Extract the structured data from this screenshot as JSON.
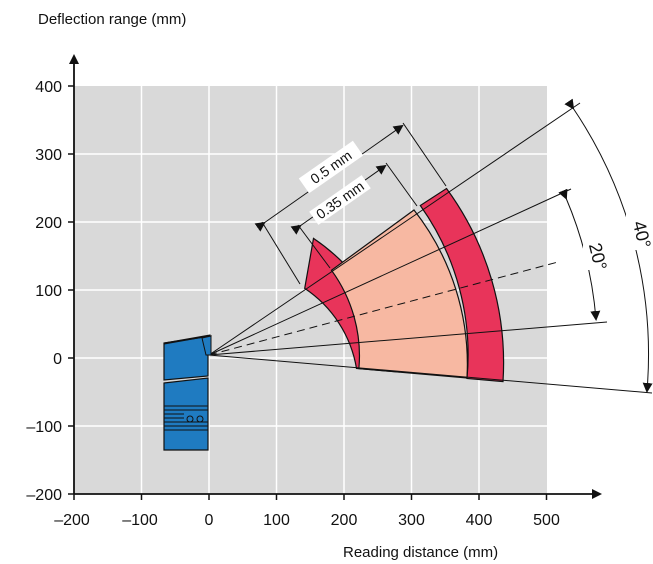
{
  "y_axis": {
    "title": "Deflection range (mm)",
    "ticks": [
      "400",
      "300",
      "200",
      "100",
      "0",
      "–100",
      "–200"
    ]
  },
  "x_axis": {
    "title": "Reading distance (mm)",
    "ticks": [
      "–200",
      "–100",
      "0",
      "100",
      "200",
      "300",
      "400",
      "500"
    ]
  },
  "annotations": {
    "resolution_outer": "0.5 mm",
    "resolution_inner": "0.35 mm",
    "angle_inner": "20°",
    "angle_outer": "40°"
  },
  "colors": {
    "plot_background": "#d9d9d9",
    "grid": "#ffffff",
    "zone_inner": "#f7b8a2",
    "zone_outer": "#e8345a",
    "scanner": "#1f7bc1",
    "lines": "#111111"
  },
  "icons": {
    "scanner": "barcode-scanner-icon"
  }
}
